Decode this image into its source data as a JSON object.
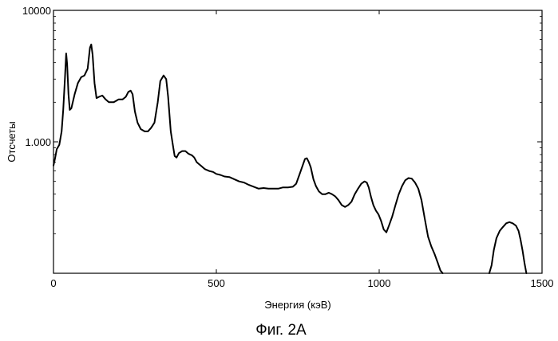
{
  "chart_data": {
    "type": "line",
    "xlabel": "Энергия (кэВ)",
    "ylabel": "Отсчеты",
    "caption": "Фиг. 2А",
    "x_scale": "linear",
    "y_scale": "log",
    "xlim": [
      0,
      1500
    ],
    "ylim": [
      100,
      10000
    ],
    "x_ticks": [
      {
        "value": 0,
        "label": "0"
      },
      {
        "value": 500,
        "label": "500"
      },
      {
        "value": 1000,
        "label": "1000"
      },
      {
        "value": 1500,
        "label": "1500"
      }
    ],
    "y_ticks": [
      {
        "value": 1000,
        "label": "1.000"
      },
      {
        "value": 10000,
        "label": "10000"
      }
    ],
    "grid": false,
    "series": [
      {
        "color": "#000000",
        "points": [
          [
            0,
            660
          ],
          [
            5,
            750
          ],
          [
            10,
            880
          ],
          [
            18,
            950
          ],
          [
            25,
            1200
          ],
          [
            30,
            1750
          ],
          [
            35,
            3000
          ],
          [
            39,
            4700
          ],
          [
            42,
            3900
          ],
          [
            46,
            2300
          ],
          [
            50,
            1750
          ],
          [
            55,
            1800
          ],
          [
            65,
            2300
          ],
          [
            75,
            2800
          ],
          [
            85,
            3100
          ],
          [
            95,
            3200
          ],
          [
            105,
            3600
          ],
          [
            112,
            5200
          ],
          [
            116,
            5500
          ],
          [
            120,
            4600
          ],
          [
            126,
            2800
          ],
          [
            132,
            2150
          ],
          [
            140,
            2200
          ],
          [
            150,
            2250
          ],
          [
            160,
            2100
          ],
          [
            170,
            2000
          ],
          [
            185,
            2000
          ],
          [
            200,
            2100
          ],
          [
            212,
            2100
          ],
          [
            222,
            2200
          ],
          [
            230,
            2400
          ],
          [
            237,
            2450
          ],
          [
            243,
            2300
          ],
          [
            250,
            1700
          ],
          [
            258,
            1400
          ],
          [
            268,
            1250
          ],
          [
            280,
            1200
          ],
          [
            290,
            1200
          ],
          [
            300,
            1280
          ],
          [
            310,
            1400
          ],
          [
            320,
            2000
          ],
          [
            328,
            2900
          ],
          [
            338,
            3200
          ],
          [
            346,
            3000
          ],
          [
            352,
            2200
          ],
          [
            360,
            1200
          ],
          [
            368,
            900
          ],
          [
            372,
            780
          ],
          [
            378,
            760
          ],
          [
            385,
            820
          ],
          [
            395,
            850
          ],
          [
            405,
            850
          ],
          [
            415,
            810
          ],
          [
            425,
            790
          ],
          [
            432,
            760
          ],
          [
            440,
            700
          ],
          [
            452,
            660
          ],
          [
            465,
            620
          ],
          [
            478,
            600
          ],
          [
            490,
            590
          ],
          [
            500,
            570
          ],
          [
            512,
            560
          ],
          [
            525,
            545
          ],
          [
            540,
            540
          ],
          [
            555,
            520
          ],
          [
            570,
            500
          ],
          [
            585,
            490
          ],
          [
            600,
            470
          ],
          [
            615,
            455
          ],
          [
            630,
            440
          ],
          [
            645,
            445
          ],
          [
            660,
            440
          ],
          [
            675,
            440
          ],
          [
            690,
            440
          ],
          [
            705,
            450
          ],
          [
            720,
            450
          ],
          [
            735,
            455
          ],
          [
            745,
            480
          ],
          [
            755,
            560
          ],
          [
            765,
            660
          ],
          [
            772,
            740
          ],
          [
            778,
            750
          ],
          [
            784,
            700
          ],
          [
            790,
            640
          ],
          [
            798,
            520
          ],
          [
            806,
            460
          ],
          [
            815,
            420
          ],
          [
            825,
            400
          ],
          [
            835,
            400
          ],
          [
            845,
            410
          ],
          [
            855,
            400
          ],
          [
            865,
            385
          ],
          [
            875,
            360
          ],
          [
            885,
            330
          ],
          [
            895,
            320
          ],
          [
            905,
            330
          ],
          [
            915,
            350
          ],
          [
            925,
            400
          ],
          [
            935,
            440
          ],
          [
            945,
            480
          ],
          [
            955,
            500
          ],
          [
            962,
            490
          ],
          [
            968,
            450
          ],
          [
            975,
            380
          ],
          [
            982,
            330
          ],
          [
            990,
            300
          ],
          [
            998,
            280
          ],
          [
            1006,
            250
          ],
          [
            1014,
            215
          ],
          [
            1022,
            205
          ],
          [
            1030,
            230
          ],
          [
            1040,
            270
          ],
          [
            1050,
            330
          ],
          [
            1060,
            400
          ],
          [
            1070,
            460
          ],
          [
            1080,
            510
          ],
          [
            1090,
            530
          ],
          [
            1100,
            525
          ],
          [
            1110,
            490
          ],
          [
            1120,
            440
          ],
          [
            1130,
            360
          ],
          [
            1140,
            260
          ],
          [
            1150,
            190
          ],
          [
            1160,
            160
          ],
          [
            1170,
            140
          ],
          [
            1180,
            120
          ],
          [
            1188,
            105
          ],
          [
            1195,
            100
          ]
        ]
      },
      {
        "color": "#000000",
        "points": [
          [
            1338,
            100
          ],
          [
            1345,
            115
          ],
          [
            1352,
            150
          ],
          [
            1360,
            185
          ],
          [
            1370,
            210
          ],
          [
            1380,
            225
          ],
          [
            1390,
            240
          ],
          [
            1400,
            245
          ],
          [
            1410,
            240
          ],
          [
            1420,
            230
          ],
          [
            1428,
            210
          ],
          [
            1434,
            180
          ],
          [
            1440,
            150
          ],
          [
            1446,
            120
          ],
          [
            1452,
            100
          ]
        ]
      }
    ]
  }
}
